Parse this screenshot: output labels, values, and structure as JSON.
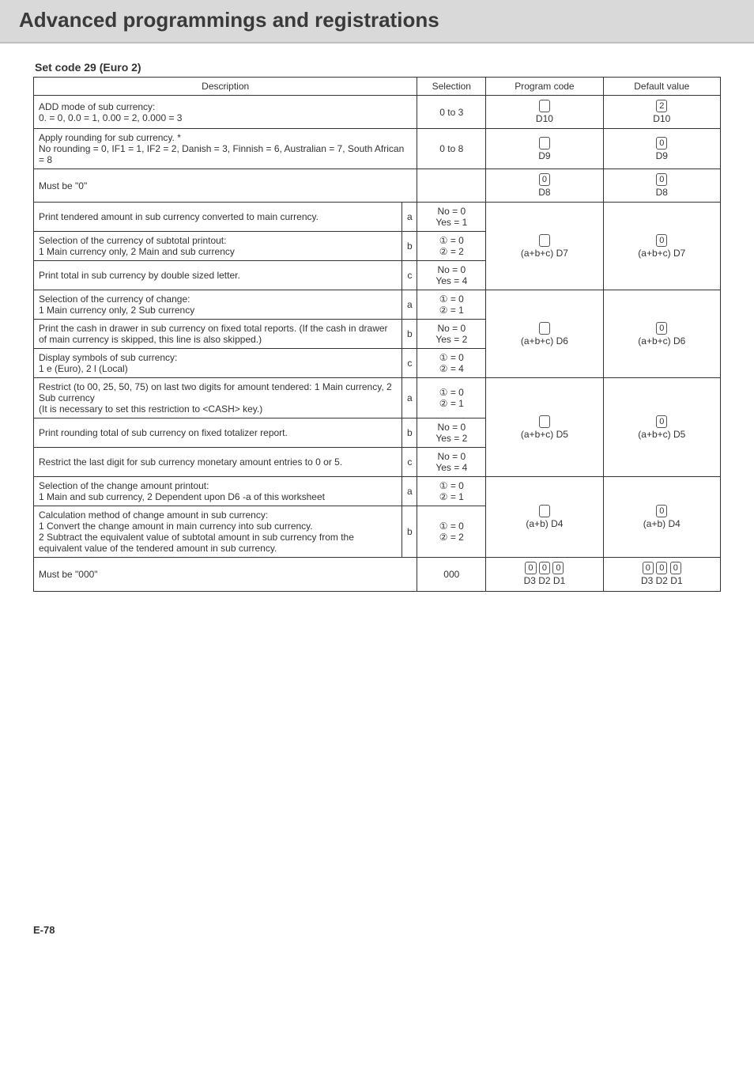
{
  "header": {
    "title": "Advanced programmings and registrations"
  },
  "subhead": "Set code 29 (Euro 2)",
  "cols": {
    "c1": "Description",
    "c2": "Selection",
    "c3": "Program code",
    "c4": "Default value"
  },
  "rows": {
    "r1": {
      "desc": "ADD mode of sub currency:\n0. = 0, 0.0 = 1, 0.00 = 2, 0.000 = 3",
      "sel": "0 to 3",
      "prog_d": "D10",
      "def_cap": "2",
      "def_d": "D10"
    },
    "r2": {
      "desc": "Apply rounding for sub currency. *\nNo rounding = 0, IF1 = 1, IF2 = 2, Danish = 3, Finnish = 6, Australian = 7, South African = 8",
      "sel": "0 to 8",
      "prog_d": "D9",
      "def_cap": "0",
      "def_d": "D9"
    },
    "r3": {
      "desc": "Must be \"0\"",
      "prog_cap": "0",
      "prog_d": "D8",
      "def_cap": "0",
      "def_d": "D8"
    },
    "g1a": {
      "desc": "Print tendered amount in sub currency converted to main currency.",
      "abc": "a",
      "sel": "No = 0\nYes = 1"
    },
    "g1b": {
      "desc": "Selection of the currency of subtotal printout:\n1 Main currency only, 2 Main and sub currency",
      "abc": "b",
      "sel1": "① = 0",
      "sel2": "② = 2",
      "prog_d": "(a+b+c) D7",
      "def_cap": "0",
      "def_d": "(a+b+c) D7"
    },
    "g1c": {
      "desc": "Print total in sub currency by double sized letter.",
      "abc": "c",
      "sel": "No = 0\nYes = 4"
    },
    "g2a": {
      "desc": "Selection of the currency of change:\n1 Main currency only, 2 Sub currency",
      "abc": "a",
      "sel1": "① = 0",
      "sel2": "② = 1"
    },
    "g2b": {
      "desc": "Print the cash in drawer in sub currency on fixed total reports. (If the cash in drawer of main currency is skipped, this line is also skipped.)",
      "abc": "b",
      "sel": "No = 0\nYes = 2",
      "prog_d": "(a+b+c) D6",
      "def_cap": "0",
      "def_d": "(a+b+c) D6"
    },
    "g2c": {
      "desc": "Display symbols of sub currency:\n1 e (Euro), 2 l (Local)",
      "abc": "c",
      "sel1": "① = 0",
      "sel2": "② = 4"
    },
    "g3a": {
      "desc": "Restrict (to 00, 25, 50, 75) on last two digits for amount tendered: 1 Main currency, 2 Sub currency\n(It is necessary to set this restriction to <CASH> key.)",
      "abc": "a",
      "sel1": "① = 0",
      "sel2": "② = 1"
    },
    "g3b": {
      "desc": "Print rounding total of sub currency on fixed totalizer report.",
      "abc": "b",
      "sel": "No = 0\nYes = 2",
      "prog_d": "(a+b+c) D5",
      "def_cap": "0",
      "def_d": "(a+b+c) D5"
    },
    "g3c": {
      "desc": "Restrict the last digit for sub currency monetary amount entries to 0 or 5.",
      "abc": "c",
      "sel": "No = 0\nYes = 4"
    },
    "g4a": {
      "desc": "Selection of the change amount printout:\n1 Main and sub currency, 2 Dependent upon D6 -a of this worksheet",
      "abc": "a",
      "sel1": "① = 0",
      "sel2": "② = 1"
    },
    "g4b": {
      "desc": "Calculation method of change amount in sub currency:\n1 Convert the change amount in main currency into sub currency.\n2 Subtract the equivalent value of subtotal amount in sub currency from the equivalent value of the tendered amount in sub currency.",
      "abc": "b",
      "sel1": "① = 0",
      "sel2": "② = 2",
      "prog_d": "(a+b) D4",
      "def_cap": "0",
      "def_d": "(a+b) D4"
    },
    "rL": {
      "desc": "Must be \"000\"",
      "sel": "000",
      "prog_d": "D3 D2 D1",
      "def_d": "D3 D2 D1",
      "cap": "0"
    }
  },
  "footer": "E-78"
}
